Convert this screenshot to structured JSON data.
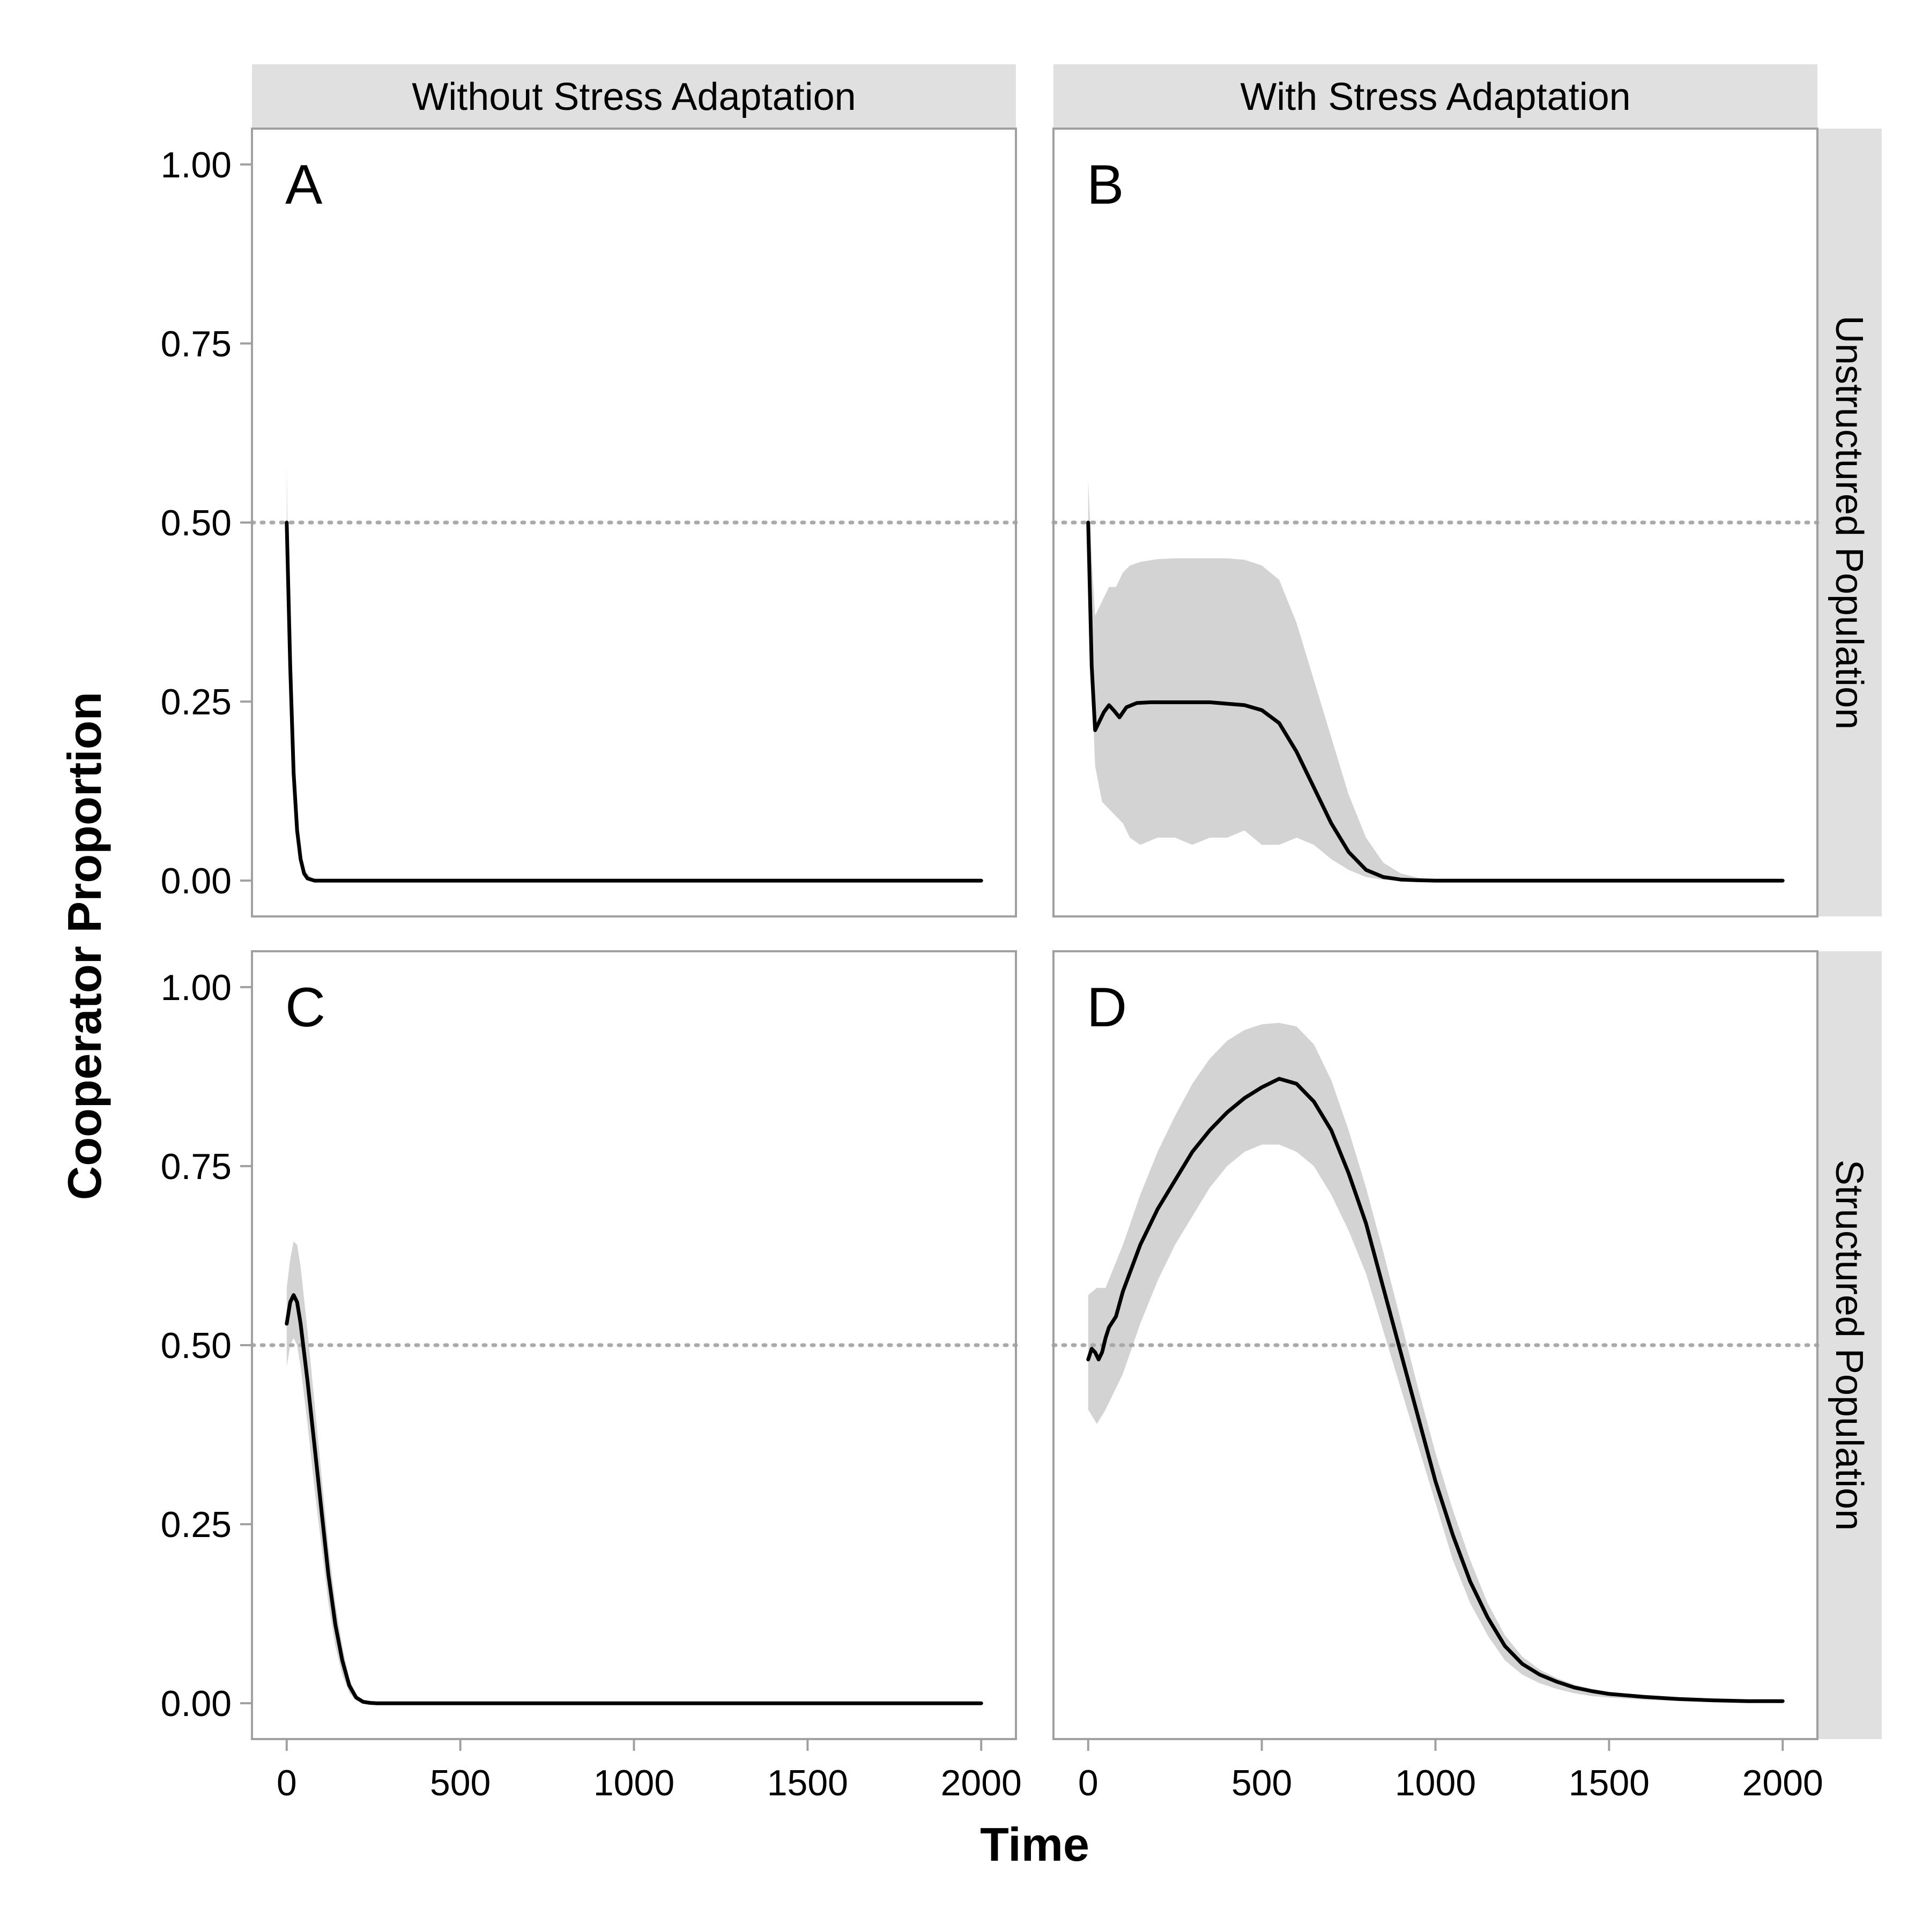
{
  "chart_data": {
    "type": "line",
    "facets": {
      "columns": [
        "Without Stress Adaptation",
        "With Stress Adaptation"
      ],
      "rows": [
        "Unstructured Population",
        "Structured Population"
      ]
    },
    "xlabel": "Time",
    "ylabel": "Cooperator Proportion",
    "xlim": [
      -100,
      2100
    ],
    "ylim": [
      -0.05,
      1.05
    ],
    "xticks": [
      0,
      500,
      1000,
      1500,
      2000
    ],
    "xtick_labels": [
      "0",
      "500",
      "1000",
      "1500",
      "2000"
    ],
    "yticks": [
      0,
      0.25,
      0.5,
      0.75,
      1
    ],
    "ytick_labels": [
      "0.00",
      "0.25",
      "0.50",
      "0.75",
      "1.00"
    ],
    "reference_line": {
      "y": 0.5,
      "style": "dotted",
      "color": "#aaaaaa"
    },
    "colors": {
      "line": "#000000",
      "ribbon": "#d3d3d3",
      "strip": "#e0e0e0",
      "frame": "#a0a0a0"
    },
    "panels": [
      {
        "label": "A",
        "column": "Without Stress Adaptation",
        "row": "Unstructured Population",
        "x": [
          0,
          10,
          20,
          30,
          40,
          50,
          60,
          80,
          100,
          150,
          200,
          500,
          1000,
          1500,
          2000
        ],
        "y": [
          0.5,
          0.3,
          0.15,
          0.07,
          0.03,
          0.01,
          0.003,
          0.0,
          0.0,
          0.0,
          0.0,
          0.0,
          0.0,
          0.0,
          0.0
        ],
        "ribbon_x": [
          0,
          5,
          10,
          20,
          30,
          50,
          80,
          100,
          2000
        ],
        "ribbon_upper": [
          0.58,
          0.4,
          0.3,
          0.16,
          0.08,
          0.015,
          0.0,
          0.0,
          0.0
        ],
        "ribbon_lower": [
          0.45,
          0.3,
          0.22,
          0.12,
          0.05,
          0.005,
          0.0,
          0.0,
          0.0
        ]
      },
      {
        "label": "B",
        "column": "With Stress Adaptation",
        "row": "Unstructured Population",
        "x": [
          0,
          10,
          20,
          30,
          45,
          60,
          75,
          90,
          110,
          140,
          180,
          250,
          350,
          450,
          500,
          550,
          600,
          650,
          700,
          750,
          800,
          850,
          900,
          950,
          1000,
          1500,
          2000
        ],
        "y": [
          0.5,
          0.3,
          0.21,
          0.22,
          0.235,
          0.245,
          0.237,
          0.228,
          0.242,
          0.248,
          0.249,
          0.249,
          0.249,
          0.245,
          0.238,
          0.22,
          0.18,
          0.13,
          0.08,
          0.04,
          0.015,
          0.005,
          0.0015,
          0.0005,
          0.0,
          0.0,
          0.0
        ],
        "ribbon_x": [
          0,
          10,
          20,
          40,
          60,
          80,
          100,
          120,
          150,
          200,
          250,
          300,
          350,
          400,
          450,
          500,
          550,
          600,
          650,
          700,
          750,
          800,
          850,
          900,
          950,
          1000,
          2000
        ],
        "ribbon_upper": [
          0.56,
          0.45,
          0.37,
          0.39,
          0.41,
          0.41,
          0.43,
          0.44,
          0.445,
          0.449,
          0.45,
          0.45,
          0.45,
          0.45,
          0.448,
          0.44,
          0.42,
          0.36,
          0.28,
          0.2,
          0.12,
          0.06,
          0.025,
          0.01,
          0.004,
          0.001,
          0.0
        ],
        "ribbon_lower": [
          0.45,
          0.28,
          0.16,
          0.11,
          0.1,
          0.09,
          0.08,
          0.06,
          0.05,
          0.06,
          0.06,
          0.05,
          0.06,
          0.06,
          0.07,
          0.05,
          0.05,
          0.06,
          0.05,
          0.03,
          0.015,
          0.005,
          0.001,
          0.0,
          0.0,
          0.0,
          0.0
        ]
      },
      {
        "label": "C",
        "column": "Without Stress Adaptation",
        "row": "Structured Population",
        "x": [
          0,
          10,
          20,
          30,
          40,
          60,
          80,
          100,
          120,
          140,
          160,
          180,
          200,
          220,
          240,
          260,
          300,
          500,
          1000,
          1500,
          2000
        ],
        "y": [
          0.53,
          0.56,
          0.57,
          0.56,
          0.53,
          0.45,
          0.36,
          0.27,
          0.18,
          0.11,
          0.06,
          0.025,
          0.008,
          0.002,
          0.0005,
          0.0,
          0.0,
          0.0,
          0.0,
          0.0,
          0.0
        ],
        "ribbon_x": [
          0,
          10,
          20,
          30,
          40,
          60,
          80,
          100,
          120,
          140,
          160,
          180,
          200,
          220,
          240,
          260,
          2000
        ],
        "ribbon_upper": [
          0.58,
          0.62,
          0.645,
          0.64,
          0.61,
          0.52,
          0.42,
          0.32,
          0.22,
          0.14,
          0.08,
          0.035,
          0.012,
          0.003,
          0.001,
          0.0,
          0.0
        ],
        "ribbon_lower": [
          0.47,
          0.5,
          0.51,
          0.5,
          0.47,
          0.39,
          0.3,
          0.22,
          0.14,
          0.08,
          0.04,
          0.015,
          0.004,
          0.001,
          0.0,
          0.0,
          0.0
        ]
      },
      {
        "label": "D",
        "column": "With Stress Adaptation",
        "row": "Structured Population",
        "x": [
          0,
          10,
          20,
          30,
          40,
          50,
          60,
          80,
          100,
          150,
          200,
          250,
          300,
          350,
          400,
          450,
          500,
          550,
          600,
          650,
          700,
          750,
          800,
          850,
          900,
          950,
          1000,
          1050,
          1100,
          1150,
          1200,
          1250,
          1300,
          1350,
          1400,
          1450,
          1500,
          1600,
          1700,
          1800,
          1900,
          2000
        ],
        "y": [
          0.48,
          0.495,
          0.49,
          0.48,
          0.49,
          0.51,
          0.525,
          0.54,
          0.575,
          0.64,
          0.69,
          0.73,
          0.77,
          0.8,
          0.825,
          0.845,
          0.86,
          0.872,
          0.865,
          0.84,
          0.8,
          0.74,
          0.67,
          0.58,
          0.49,
          0.4,
          0.31,
          0.235,
          0.17,
          0.12,
          0.08,
          0.055,
          0.04,
          0.03,
          0.022,
          0.017,
          0.013,
          0.009,
          0.006,
          0.004,
          0.003,
          0.003
        ],
        "ribbon_x": [
          0,
          25,
          50,
          100,
          150,
          200,
          250,
          300,
          350,
          400,
          450,
          500,
          550,
          600,
          650,
          700,
          750,
          800,
          850,
          900,
          950,
          1000,
          1050,
          1100,
          1150,
          1200,
          1250,
          1300,
          1350,
          1400,
          1450,
          1500,
          1600,
          1700,
          1800,
          1900,
          2000
        ],
        "ribbon_upper": [
          0.57,
          0.58,
          0.58,
          0.64,
          0.71,
          0.77,
          0.82,
          0.865,
          0.9,
          0.925,
          0.94,
          0.948,
          0.95,
          0.945,
          0.92,
          0.87,
          0.8,
          0.72,
          0.63,
          0.535,
          0.44,
          0.35,
          0.27,
          0.2,
          0.14,
          0.095,
          0.065,
          0.047,
          0.035,
          0.026,
          0.02,
          0.016,
          0.011,
          0.007,
          0.005,
          0.004,
          0.004
        ],
        "ribbon_lower": [
          0.41,
          0.39,
          0.41,
          0.46,
          0.53,
          0.59,
          0.64,
          0.68,
          0.72,
          0.75,
          0.77,
          0.78,
          0.78,
          0.77,
          0.75,
          0.71,
          0.66,
          0.6,
          0.52,
          0.44,
          0.36,
          0.28,
          0.2,
          0.14,
          0.095,
          0.06,
          0.04,
          0.028,
          0.02,
          0.014,
          0.01,
          0.008,
          0.005,
          0.003,
          0.002,
          0.001,
          0.001
        ]
      }
    ]
  }
}
